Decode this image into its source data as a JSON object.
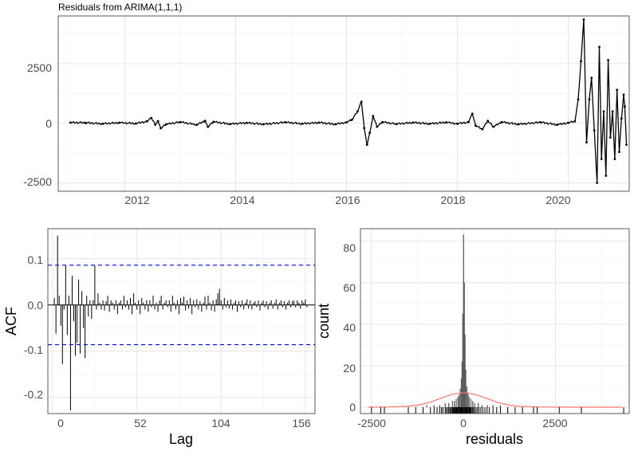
{
  "chart_data": [
    {
      "type": "line",
      "title": "Residuals from ARIMA(1,1,1)",
      "xlabel": "",
      "ylabel": "",
      "x_ticks": [
        "2012",
        "2014",
        "2016",
        "2018",
        "2020"
      ],
      "y_ticks": [
        "2500",
        "0",
        "-2500"
      ],
      "xlim": [
        2010.8,
        2021.1
      ],
      "ylim": [
        -2850,
        4500
      ],
      "grid": true,
      "series": [
        {
          "color": "#000000",
          "points": [
            [
              2011.02,
              30
            ],
            [
              2011.3,
              20
            ],
            [
              2011.6,
              -20
            ],
            [
              2011.9,
              25
            ],
            [
              2012.2,
              -10
            ],
            [
              2012.4,
              80
            ],
            [
              2012.48,
              220
            ],
            [
              2012.55,
              -60
            ],
            [
              2012.6,
              90
            ],
            [
              2012.65,
              -210
            ],
            [
              2012.75,
              -40
            ],
            [
              2013.0,
              50
            ],
            [
              2013.3,
              -60
            ],
            [
              2013.45,
              100
            ],
            [
              2013.5,
              -150
            ],
            [
              2013.6,
              60
            ],
            [
              2013.9,
              -30
            ],
            [
              2014.2,
              20
            ],
            [
              2014.5,
              -40
            ],
            [
              2014.9,
              40
            ],
            [
              2015.2,
              -20
            ],
            [
              2015.5,
              30
            ],
            [
              2015.8,
              -40
            ],
            [
              2016.0,
              40
            ],
            [
              2016.1,
              150
            ],
            [
              2016.2,
              500
            ],
            [
              2016.27,
              900
            ],
            [
              2016.32,
              -200
            ],
            [
              2016.37,
              -900
            ],
            [
              2016.42,
              -400
            ],
            [
              2016.48,
              300
            ],
            [
              2016.55,
              -150
            ],
            [
              2016.65,
              50
            ],
            [
              2016.9,
              -30
            ],
            [
              2017.2,
              30
            ],
            [
              2017.5,
              -20
            ],
            [
              2017.8,
              40
            ],
            [
              2018.0,
              -20
            ],
            [
              2018.2,
              50
            ],
            [
              2018.27,
              400
            ],
            [
              2018.33,
              -100
            ],
            [
              2018.45,
              -250
            ],
            [
              2018.55,
              100
            ],
            [
              2018.65,
              -150
            ],
            [
              2018.8,
              50
            ],
            [
              2019.1,
              -40
            ],
            [
              2019.5,
              40
            ],
            [
              2019.8,
              -60
            ],
            [
              2020.0,
              20
            ],
            [
              2020.12,
              80
            ],
            [
              2020.18,
              1000
            ],
            [
              2020.23,
              2600
            ],
            [
              2020.28,
              4350
            ],
            [
              2020.33,
              -800
            ],
            [
              2020.38,
              1000
            ],
            [
              2020.42,
              1900
            ],
            [
              2020.47,
              -300
            ],
            [
              2020.52,
              -2500
            ],
            [
              2020.56,
              3200
            ],
            [
              2020.6,
              -1500
            ],
            [
              2020.64,
              500
            ],
            [
              2020.68,
              -2200
            ],
            [
              2020.72,
              2650
            ],
            [
              2020.76,
              -600
            ],
            [
              2020.8,
              500
            ],
            [
              2020.84,
              -1500
            ],
            [
              2020.88,
              1400
            ],
            [
              2020.92,
              -1200
            ],
            [
              2020.96,
              200
            ],
            [
              2021.0,
              1200
            ],
            [
              2021.02,
              700
            ],
            [
              2021.05,
              -900
            ]
          ]
        }
      ]
    },
    {
      "type": "bar",
      "title": "",
      "xlabel": "Lag",
      "ylabel": "ACF",
      "x_ticks": [
        "0",
        "52",
        "104",
        "156"
      ],
      "y_ticks": [
        "0.1",
        "0.0",
        "-0.1",
        "-0.2"
      ],
      "xlim": [
        -3,
        162
      ],
      "ylim": [
        -0.235,
        0.165
      ],
      "confidence_band": [
        0.086,
        -0.086
      ],
      "band_color": "#0000ff",
      "grid": true,
      "acf_values": [
        0.015,
        -0.062,
        0.15,
        0.02,
        -0.045,
        -0.128,
        -0.01,
        0.085,
        -0.065,
        0.02,
        -0.228,
        0.063,
        -0.035,
        -0.11,
        -0.082,
        0.055,
        -0.105,
        0.03,
        -0.05,
        -0.115,
        0.02,
        -0.025,
        0.01,
        -0.03,
        0.01,
        0.085,
        -0.01,
        0.025,
        0.005,
        -0.01,
        0.01,
        -0.012,
        0.008,
        0.02,
        -0.015,
        0.01,
        0.005,
        -0.01,
        0.01,
        -0.02,
        0.005,
        0.01,
        -0.01,
        0.02,
        -0.005,
        0.01,
        -0.01,
        0.015,
        -0.02,
        0.025,
        0.005,
        -0.01,
        0.01,
        -0.02,
        0.015,
        0.005,
        -0.01,
        0.01,
        -0.015,
        0.01,
        -0.005,
        0.02,
        -0.01,
        0.005,
        -0.015,
        0.01,
        0.02,
        -0.01,
        0.005,
        0.01,
        -0.005,
        0.01,
        -0.015,
        0.02,
        0.005,
        -0.01,
        0.01,
        -0.02,
        0.015,
        0.005,
        0.018,
        -0.012,
        0.01,
        -0.008,
        0.015,
        -0.02,
        0.01,
        -0.005,
        0.012,
        -0.01,
        0.008,
        -0.015,
        0.005,
        0.018,
        -0.01,
        0.02,
        0.005,
        -0.012,
        0.01,
        -0.015,
        0.012,
        0.025,
        0.035,
        0.01,
        -0.01,
        0.015,
        -0.005,
        0.01,
        -0.008,
        0.012,
        -0.01,
        0.005,
        0.01,
        -0.015,
        0.008,
        -0.005,
        0.01,
        -0.01,
        0.005,
        0.012,
        -0.008,
        0.01,
        -0.01,
        0.005,
        0.008,
        -0.005,
        0.01,
        -0.012,
        0.005,
        0.01,
        -0.005,
        0.008,
        -0.01,
        0.005,
        0.01,
        -0.008,
        0.005,
        0.012,
        -0.01,
        0.005,
        0.01,
        -0.005,
        0.008,
        -0.01,
        0.005,
        0.01,
        -0.005,
        0.008,
        0.01,
        -0.005,
        0.01,
        0.005,
        -0.008,
        0.01,
        0.005,
        0.012,
        -0.005
      ]
    },
    {
      "type": "histogram",
      "title": "",
      "xlabel": "residuals",
      "ylabel": "count",
      "x_ticks": [
        "-2500",
        "0",
        "2500"
      ],
      "y_ticks": [
        "80",
        "60",
        "40",
        "20",
        "0"
      ],
      "xlim": [
        -2800,
        4500
      ],
      "ylim": [
        -3,
        86
      ],
      "grid": true,
      "bins": [
        [
          -1000,
          1
        ],
        [
          -800,
          1
        ],
        [
          -650,
          1
        ],
        [
          -500,
          2
        ],
        [
          -400,
          2
        ],
        [
          -300,
          3
        ],
        [
          -250,
          3
        ],
        [
          -200,
          4
        ],
        [
          -150,
          5
        ],
        [
          -120,
          6
        ],
        [
          -90,
          9
        ],
        [
          -60,
          14
        ],
        [
          -40,
          22
        ],
        [
          -20,
          45
        ],
        [
          0,
          83
        ],
        [
          20,
          60
        ],
        [
          40,
          35
        ],
        [
          60,
          18
        ],
        [
          90,
          10
        ],
        [
          120,
          7
        ],
        [
          150,
          5
        ],
        [
          200,
          4
        ],
        [
          250,
          3
        ],
        [
          300,
          2
        ],
        [
          400,
          2
        ],
        [
          500,
          1
        ],
        [
          650,
          1
        ],
        [
          800,
          1
        ],
        [
          1000,
          1
        ]
      ],
      "density_curve": {
        "color": "#f8766d",
        "points": [
          [
            -2600,
            0.1
          ],
          [
            -2000,
            0.2
          ],
          [
            -1500,
            0.5
          ],
          [
            -1200,
            1.2
          ],
          [
            -900,
            2.5
          ],
          [
            -600,
            4.5
          ],
          [
            -300,
            6.3
          ],
          [
            0,
            7.1
          ],
          [
            300,
            6.3
          ],
          [
            600,
            4.5
          ],
          [
            900,
            2.5
          ],
          [
            1200,
            1.2
          ],
          [
            1500,
            0.5
          ],
          [
            2000,
            0.2
          ],
          [
            2600,
            0.1
          ],
          [
            3500,
            0.05
          ],
          [
            4300,
            0.05
          ]
        ]
      },
      "rug_values": [
        -2500,
        -2250,
        -2150,
        -1500,
        -1300,
        -1100,
        -900,
        -800,
        -720,
        -650,
        -600,
        -560,
        -500,
        -470,
        -430,
        -400,
        -370,
        -340,
        -310,
        -290,
        -270,
        -250,
        -230,
        -210,
        -190,
        -170,
        -150,
        -130,
        -110,
        -90,
        -70,
        -50,
        -30,
        -10,
        10,
        30,
        50,
        70,
        90,
        110,
        130,
        150,
        170,
        190,
        210,
        240,
        270,
        300,
        340,
        380,
        420,
        470,
        520,
        580,
        640,
        700,
        800,
        900,
        1000,
        1200,
        1400,
        1600,
        1900,
        2000,
        2600,
        3200,
        4350
      ]
    }
  ]
}
